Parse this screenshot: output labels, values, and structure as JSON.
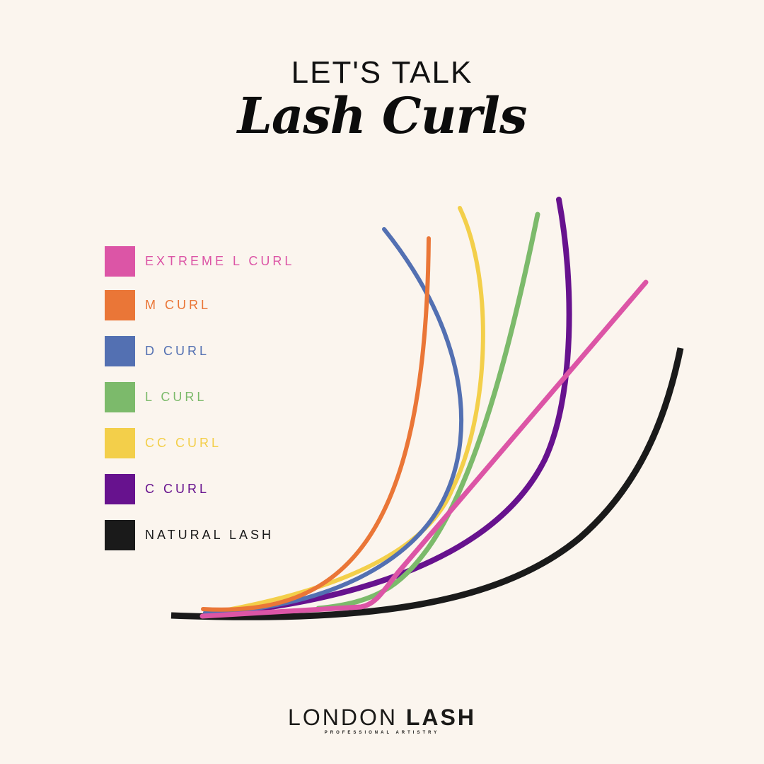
{
  "header": {
    "kicker": "LET'S TALK",
    "title": "Lash Curls"
  },
  "legend": [
    {
      "label": "EXTREME L CURL",
      "color": "#dc55a6"
    },
    {
      "label": "M CURL",
      "color": "#ea7637"
    },
    {
      "label": "D CURL",
      "color": "#5370b2"
    },
    {
      "label": "L CURL",
      "color": "#7cba6b"
    },
    {
      "label": "CC CURL",
      "color": "#f3cf4a"
    },
    {
      "label": "C CURL",
      "color": "#67128e"
    },
    {
      "label": "NATURAL LASH",
      "color": "#1a1a1a"
    }
  ],
  "logo": {
    "word1": "LONDON",
    "word2": "LASH",
    "tagline": "PROFESSIONAL ARTISTRY"
  }
}
